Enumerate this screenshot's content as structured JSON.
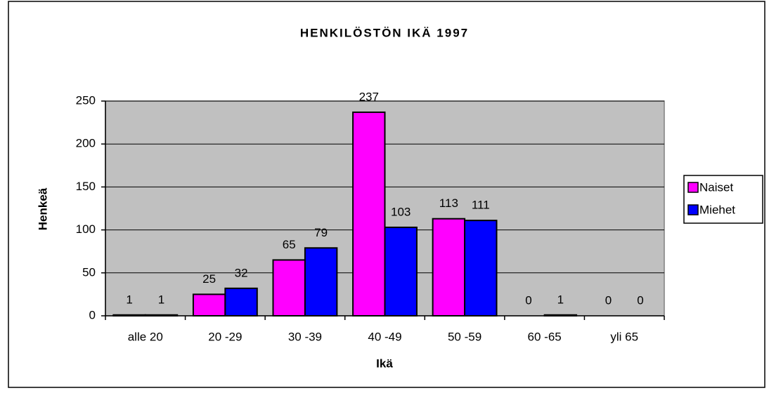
{
  "chart_data": {
    "type": "bar",
    "title": "HENKILÖSTÖN IKÄ 1997",
    "x_label": "Ikä",
    "y_label": "Henkeä",
    "categories": [
      "alle 20",
      "20 -29",
      "30 -39",
      "40 -49",
      "50 -59",
      "60 -65",
      "yli 65"
    ],
    "series": [
      {
        "name": "Naiset",
        "color": "#ff00ff",
        "values": [
          1,
          25,
          65,
          237,
          113,
          0,
          0
        ]
      },
      {
        "name": "Miehet",
        "color": "#0000ff",
        "values": [
          1,
          32,
          79,
          103,
          111,
          1,
          0
        ]
      }
    ],
    "ylim": [
      0,
      250
    ],
    "yticks": [
      0,
      50,
      100,
      150,
      200,
      250
    ],
    "grid": true,
    "legend": "right",
    "plot_background": "#c0c0c0"
  }
}
